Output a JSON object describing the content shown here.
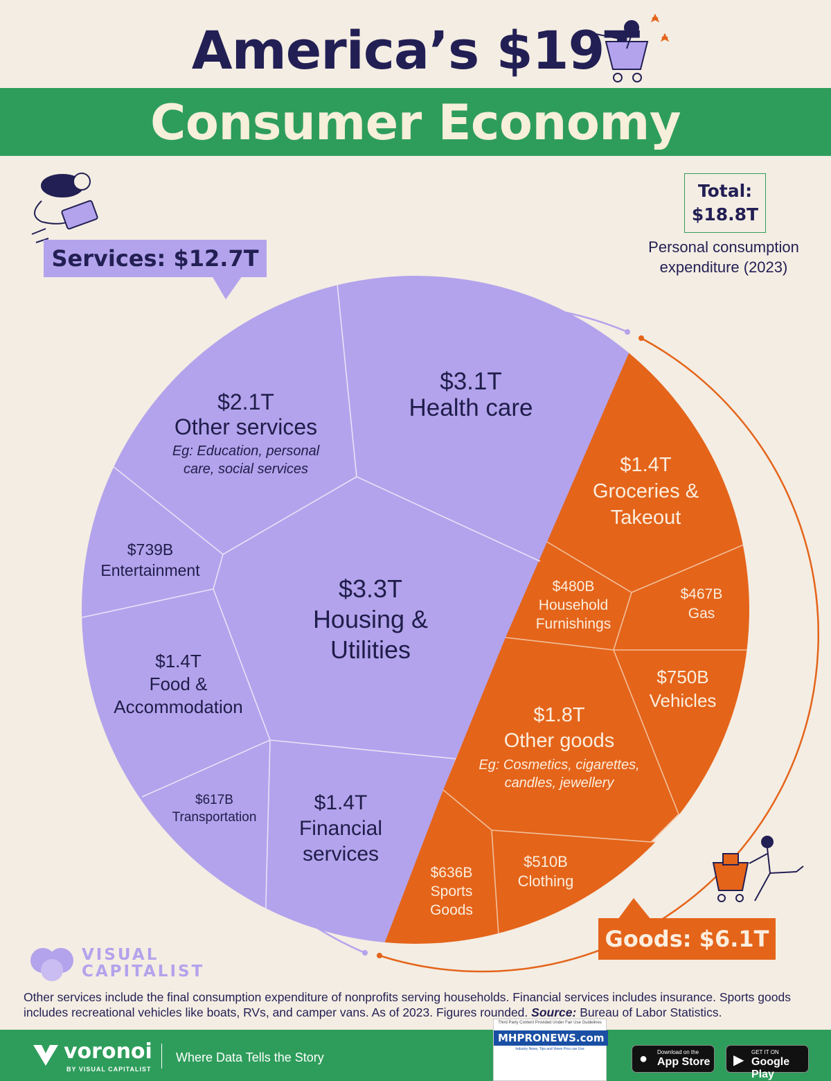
{
  "title": {
    "line1": "America’s $19T",
    "line2": "Consumer Economy"
  },
  "total": {
    "label": "Total:",
    "value": "$18.8T",
    "note_line1": "Personal consumption",
    "note_line2": "expenditure (2023)"
  },
  "groups": {
    "services_label": "Services: $12.7T",
    "goods_label": "Goods: $6.1T"
  },
  "colors": {
    "services": "#b3a3ec",
    "goods": "#e4641a",
    "green": "#2e9d5b",
    "ink": "#221f54",
    "background": "#f4ede3"
  },
  "chart_data": {
    "type": "voronoi treemap",
    "title": "America’s $19T Consumer Economy",
    "total": {
      "label": "Total:",
      "value": 18.8,
      "unit": "trillion USD",
      "display": "$18.8T"
    },
    "groups": [
      {
        "name": "Services",
        "value": 12.7,
        "display": "$12.7T"
      },
      {
        "name": "Goods",
        "value": 6.1,
        "display": "$6.1T"
      }
    ],
    "cells": [
      {
        "group": "Services",
        "label": "Health care",
        "value": 3.1,
        "display": "$3.1T",
        "note": ""
      },
      {
        "group": "Services",
        "label": "Other services",
        "value": 2.1,
        "display": "$2.1T",
        "note": "Eg: Education, personal care, social services"
      },
      {
        "group": "Services",
        "label": "Entertainment",
        "value": 0.739,
        "display": "$739B",
        "note": ""
      },
      {
        "group": "Services",
        "label": "Housing & Utilities",
        "value": 3.3,
        "display": "$3.3T",
        "note": ""
      },
      {
        "group": "Services",
        "label": "Food & Accommodation",
        "value": 1.4,
        "display": "$1.4T",
        "note": ""
      },
      {
        "group": "Services",
        "label": "Transportation",
        "value": 0.617,
        "display": "$617B",
        "note": ""
      },
      {
        "group": "Services",
        "label": "Financial services",
        "value": 1.4,
        "display": "$1.4T",
        "note": ""
      },
      {
        "group": "Goods",
        "label": "Groceries & Takeout",
        "value": 1.4,
        "display": "$1.4T",
        "note": ""
      },
      {
        "group": "Goods",
        "label": "Household Furnishings",
        "value": 0.48,
        "display": "$480B",
        "note": ""
      },
      {
        "group": "Goods",
        "label": "Gas",
        "value": 0.467,
        "display": "$467B",
        "note": ""
      },
      {
        "group": "Goods",
        "label": "Vehicles",
        "value": 0.75,
        "display": "$750B",
        "note": ""
      },
      {
        "group": "Goods",
        "label": "Other goods",
        "value": 1.8,
        "display": "$1.8T",
        "note": "Eg: Cosmetics, cigarettes, candles, jewellery"
      },
      {
        "group": "Goods",
        "label": "Sports Goods",
        "value": 0.636,
        "display": "$636B",
        "note": ""
      },
      {
        "group": "Goods",
        "label": "Clothing",
        "value": 0.51,
        "display": "$510B",
        "note": ""
      }
    ]
  },
  "footnote": {
    "text": "Other services include the final consumption expenditure of nonprofits serving households. Financial services includes insurance. Sports goods includes recreational vehicles like boats, RVs, and camper vans. As of 2023. Figures rounded.",
    "source_label": "Source:",
    "source": "Bureau of Labor Statistics."
  },
  "logo": {
    "line1": "VISUAL",
    "line2": "CAPITALIST"
  },
  "footer": {
    "brand": "voronoi",
    "brand_sub": "BY VISUAL CAPITALIST",
    "tagline": "Where Data Tells the Story",
    "badge_note": "Third Party Content Provided Under Fair Use Guidelines",
    "badge_name": "MHPRONEWS.com",
    "badge_tag": "Industry News, Tips and Views Pros can Use",
    "appstore_small": "Download on the",
    "appstore_big": "App Store",
    "googleplay_small": "GET IT ON",
    "googleplay_big": "Google Play"
  }
}
